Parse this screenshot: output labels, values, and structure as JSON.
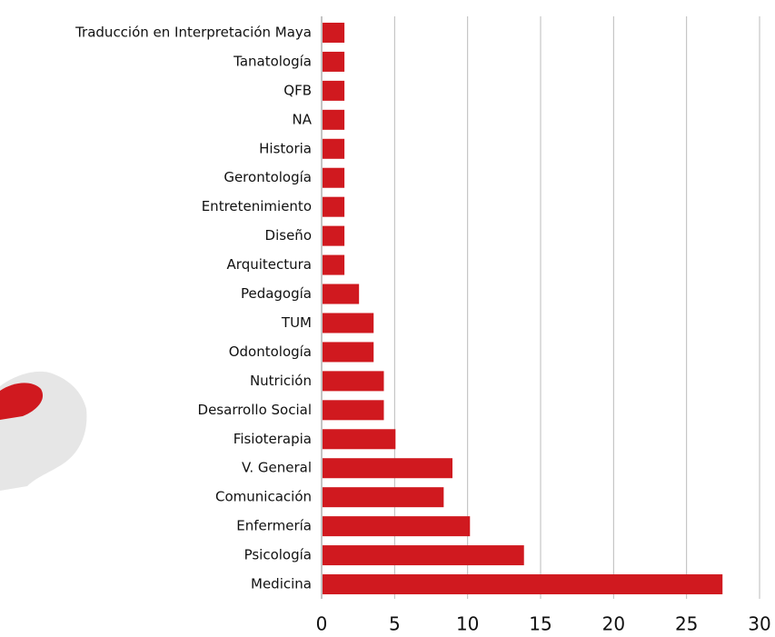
{
  "chart_data": {
    "type": "barh",
    "categories": [
      "Traducción en Interpretación Maya",
      "Tanatología",
      "QFB",
      "NA",
      "Historia",
      "Gerontología",
      "Entretenimiento",
      "Diseño",
      "Arquitectura",
      "Pedagogía",
      "TUM",
      "Odontología",
      "Nutrición",
      "Desarrollo Social",
      "Fisioterapia",
      "V. General",
      "Comunicación",
      "Enfermería",
      "Psicología",
      "Medicina"
    ],
    "values": [
      1.5,
      1.5,
      1.5,
      1.5,
      1.5,
      1.5,
      1.5,
      1.5,
      1.5,
      2.5,
      3.5,
      3.5,
      4.2,
      4.2,
      5,
      8.9,
      8.3,
      10.1,
      13.8,
      27.4
    ],
    "color": "#d0191f",
    "xlim": [
      0,
      30
    ],
    "xticks": [
      0,
      5,
      10,
      15,
      20,
      25,
      30
    ],
    "grid": true
  }
}
